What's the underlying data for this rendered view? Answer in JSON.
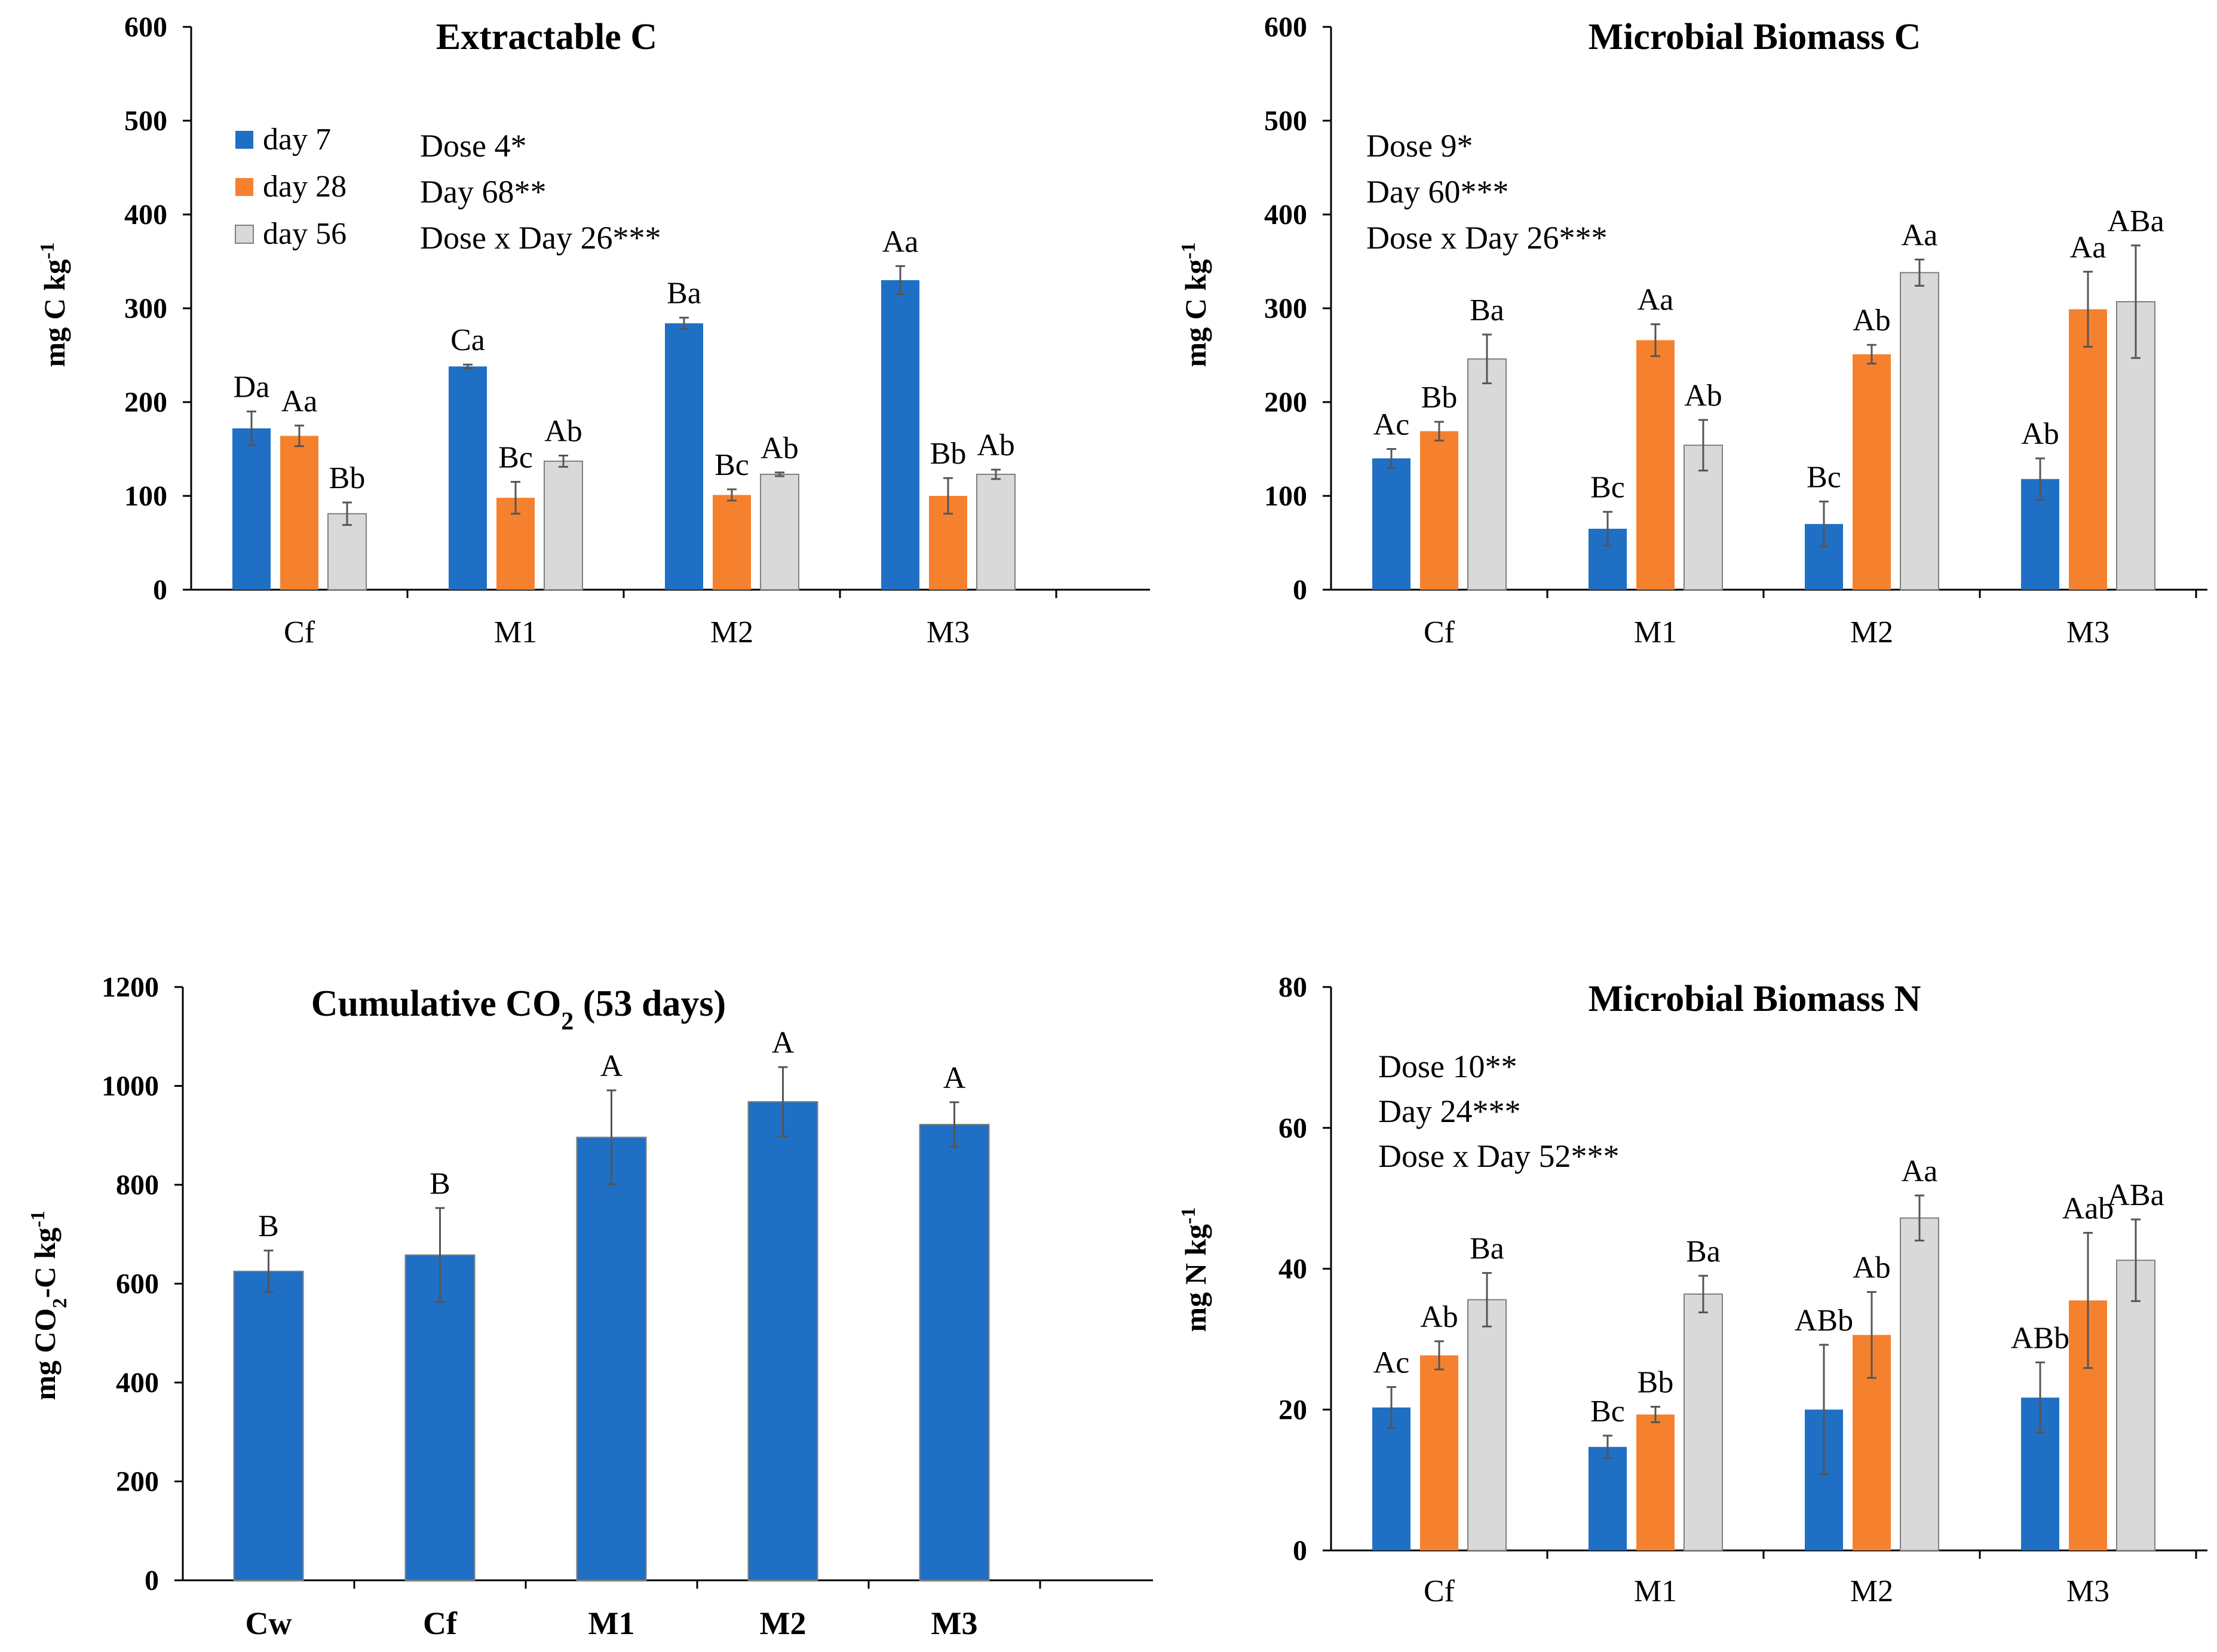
{
  "colors": {
    "day7": "#1f6fc5",
    "day28": "#f5812f",
    "day56": "#d9d9d9",
    "co2_bar": "#1f6fc5"
  },
  "chart_data": [
    {
      "id": "extractable_c",
      "type": "bar",
      "title": "Extractable C",
      "ylabel": "mg C kg",
      "ylabel_sup": "-1",
      "ylim": [
        0,
        600
      ],
      "yticks": [
        0,
        100,
        200,
        300,
        400,
        500,
        600
      ],
      "categories": [
        "Cf",
        "M1",
        "M2",
        "M3"
      ],
      "legend": [
        "day 7",
        "day 28",
        "day 56"
      ],
      "stats": [
        "Dose 4*",
        "Day 68**",
        "Dose x Day 26***"
      ],
      "series": [
        {
          "name": "day 7",
          "values": [
            172,
            238,
            284,
            330
          ],
          "errors": [
            18,
            2,
            6,
            15
          ],
          "labels": [
            "Da",
            "Ca",
            "Ba",
            "Aa"
          ]
        },
        {
          "name": "day 28",
          "values": [
            164,
            98,
            101,
            100
          ],
          "errors": [
            11,
            17,
            6,
            19
          ],
          "labels": [
            "Aa",
            "Bc",
            "Bc",
            "Bb"
          ]
        },
        {
          "name": "day 56",
          "values": [
            81,
            137,
            123,
            123
          ],
          "errors": [
            12,
            6,
            2,
            5
          ],
          "labels": [
            "Bb",
            "Ab",
            "Ab",
            "Ab"
          ]
        }
      ]
    },
    {
      "id": "microbial_biomass_c",
      "type": "bar",
      "title": "Microbial Biomass C",
      "ylabel": "mg C kg",
      "ylabel_sup": "-1",
      "ylim": [
        0,
        600
      ],
      "yticks": [
        0,
        100,
        200,
        300,
        400,
        500,
        600
      ],
      "categories": [
        "Cf",
        "M1",
        "M2",
        "M3"
      ],
      "stats": [
        "Dose 9*",
        "Day 60***",
        "Dose x Day 26***"
      ],
      "series": [
        {
          "name": "day 7",
          "values": [
            140,
            65,
            70,
            118
          ],
          "errors": [
            10,
            18,
            24,
            22
          ],
          "labels": [
            "Ac",
            "Bc",
            "Bc",
            "Ab"
          ]
        },
        {
          "name": "day 28",
          "values": [
            169,
            266,
            251,
            299
          ],
          "errors": [
            10,
            17,
            10,
            40
          ],
          "labels": [
            "Bb",
            "Aa",
            "Ab",
            "Aa"
          ]
        },
        {
          "name": "day 56",
          "values": [
            246,
            154,
            338,
            307
          ],
          "errors": [
            26,
            27,
            14,
            60
          ],
          "labels": [
            "Ba",
            "Ab",
            "Aa",
            "ABa"
          ]
        }
      ]
    },
    {
      "id": "cumulative_co2",
      "type": "bar",
      "title": "Cumulative CO",
      "title_sub": "2",
      "title_suffix": " (53 days)",
      "ylabel": "mg CO",
      "ylabel_sub": "2",
      "ylabel_mid": "-C kg",
      "ylabel_sup": "-1",
      "ylim": [
        0,
        1200
      ],
      "yticks": [
        0,
        200,
        400,
        600,
        800,
        1000,
        1200
      ],
      "categories": [
        "Cw",
        "Cf",
        "M1",
        "M2",
        "M3"
      ],
      "series": [
        {
          "name": "CO2",
          "values": [
            625,
            658,
            896,
            968,
            922
          ],
          "errors": [
            42,
            95,
            95,
            70,
            45
          ],
          "labels": [
            "B",
            "B",
            "A",
            "A",
            "A"
          ]
        }
      ]
    },
    {
      "id": "microbial_biomass_n",
      "type": "bar",
      "title": "Microbial Biomass N",
      "ylabel": "mg N kg",
      "ylabel_sup": "-1",
      "ylim": [
        0,
        80
      ],
      "yticks": [
        0,
        20,
        40,
        60,
        80
      ],
      "categories": [
        "Cf",
        "M1",
        "M2",
        "M3"
      ],
      "stats": [
        "Dose 10**",
        "Day 24***",
        "Dose x Day 52***"
      ],
      "series": [
        {
          "name": "day 7",
          "values": [
            20.3,
            14.7,
            20,
            21.7
          ],
          "errors": [
            2.9,
            1.6,
            9.2,
            5
          ],
          "labels": [
            "Ac",
            "Bc",
            "ABb",
            "ABb"
          ]
        },
        {
          "name": "day 28",
          "values": [
            27.7,
            19.3,
            30.6,
            35.5
          ],
          "errors": [
            2,
            1.1,
            6.1,
            9.6
          ],
          "labels": [
            "Ab",
            "Bb",
            "Ab",
            "Aab"
          ]
        },
        {
          "name": "day 56",
          "values": [
            35.6,
            36.4,
            47.2,
            41.2
          ],
          "errors": [
            3.8,
            2.6,
            3.2,
            5.8
          ],
          "labels": [
            "Ba",
            "Ba",
            "Aa",
            "ABa"
          ]
        }
      ]
    }
  ]
}
